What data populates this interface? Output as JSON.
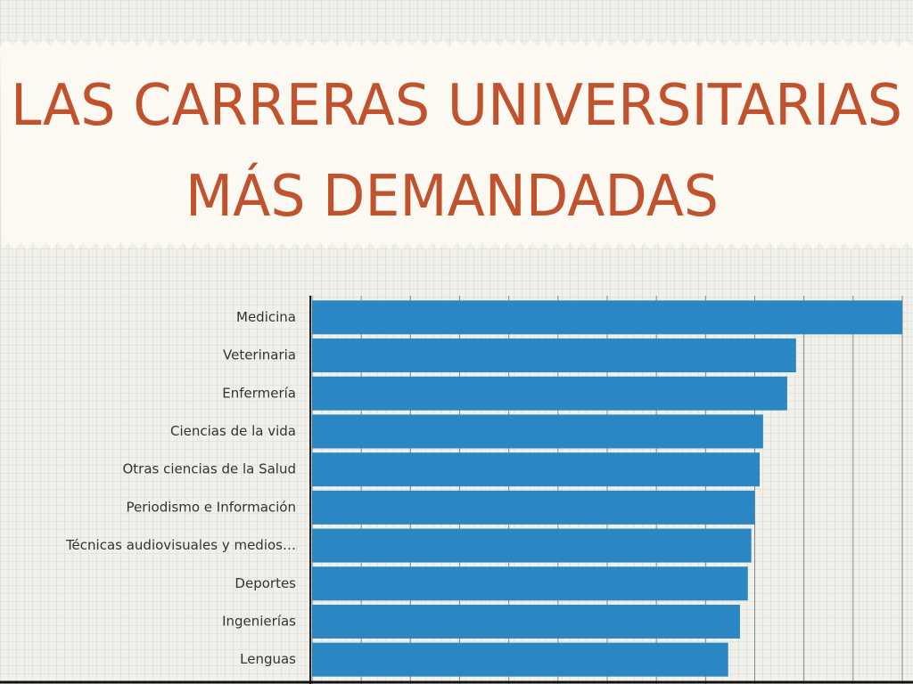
{
  "chart_data": {
    "type": "hbar",
    "title": [
      "LAS CARRERAS UNIVERSITARIAS",
      "MÁS DEMANDADAS"
    ],
    "categories": [
      "Medicina",
      "Veterinaria",
      "Enfermería",
      "Ciencias de la vida",
      "Otras ciencias de la Salud",
      "Periodismo e Información",
      "Técnicas audiovisuales y medios…",
      "Deportes",
      "Ingenierías",
      "Lenguas"
    ],
    "values": [
      12,
      9.84,
      9.66,
      9.17,
      9.1,
      9.0,
      8.93,
      8.86,
      8.7,
      8.46
    ],
    "color": "#2a87c4",
    "xlim": [
      0,
      12
    ],
    "xticks": [
      0,
      1,
      2,
      3,
      4,
      5,
      6,
      7,
      8,
      9,
      10,
      11,
      12
    ],
    "grid": true
  }
}
